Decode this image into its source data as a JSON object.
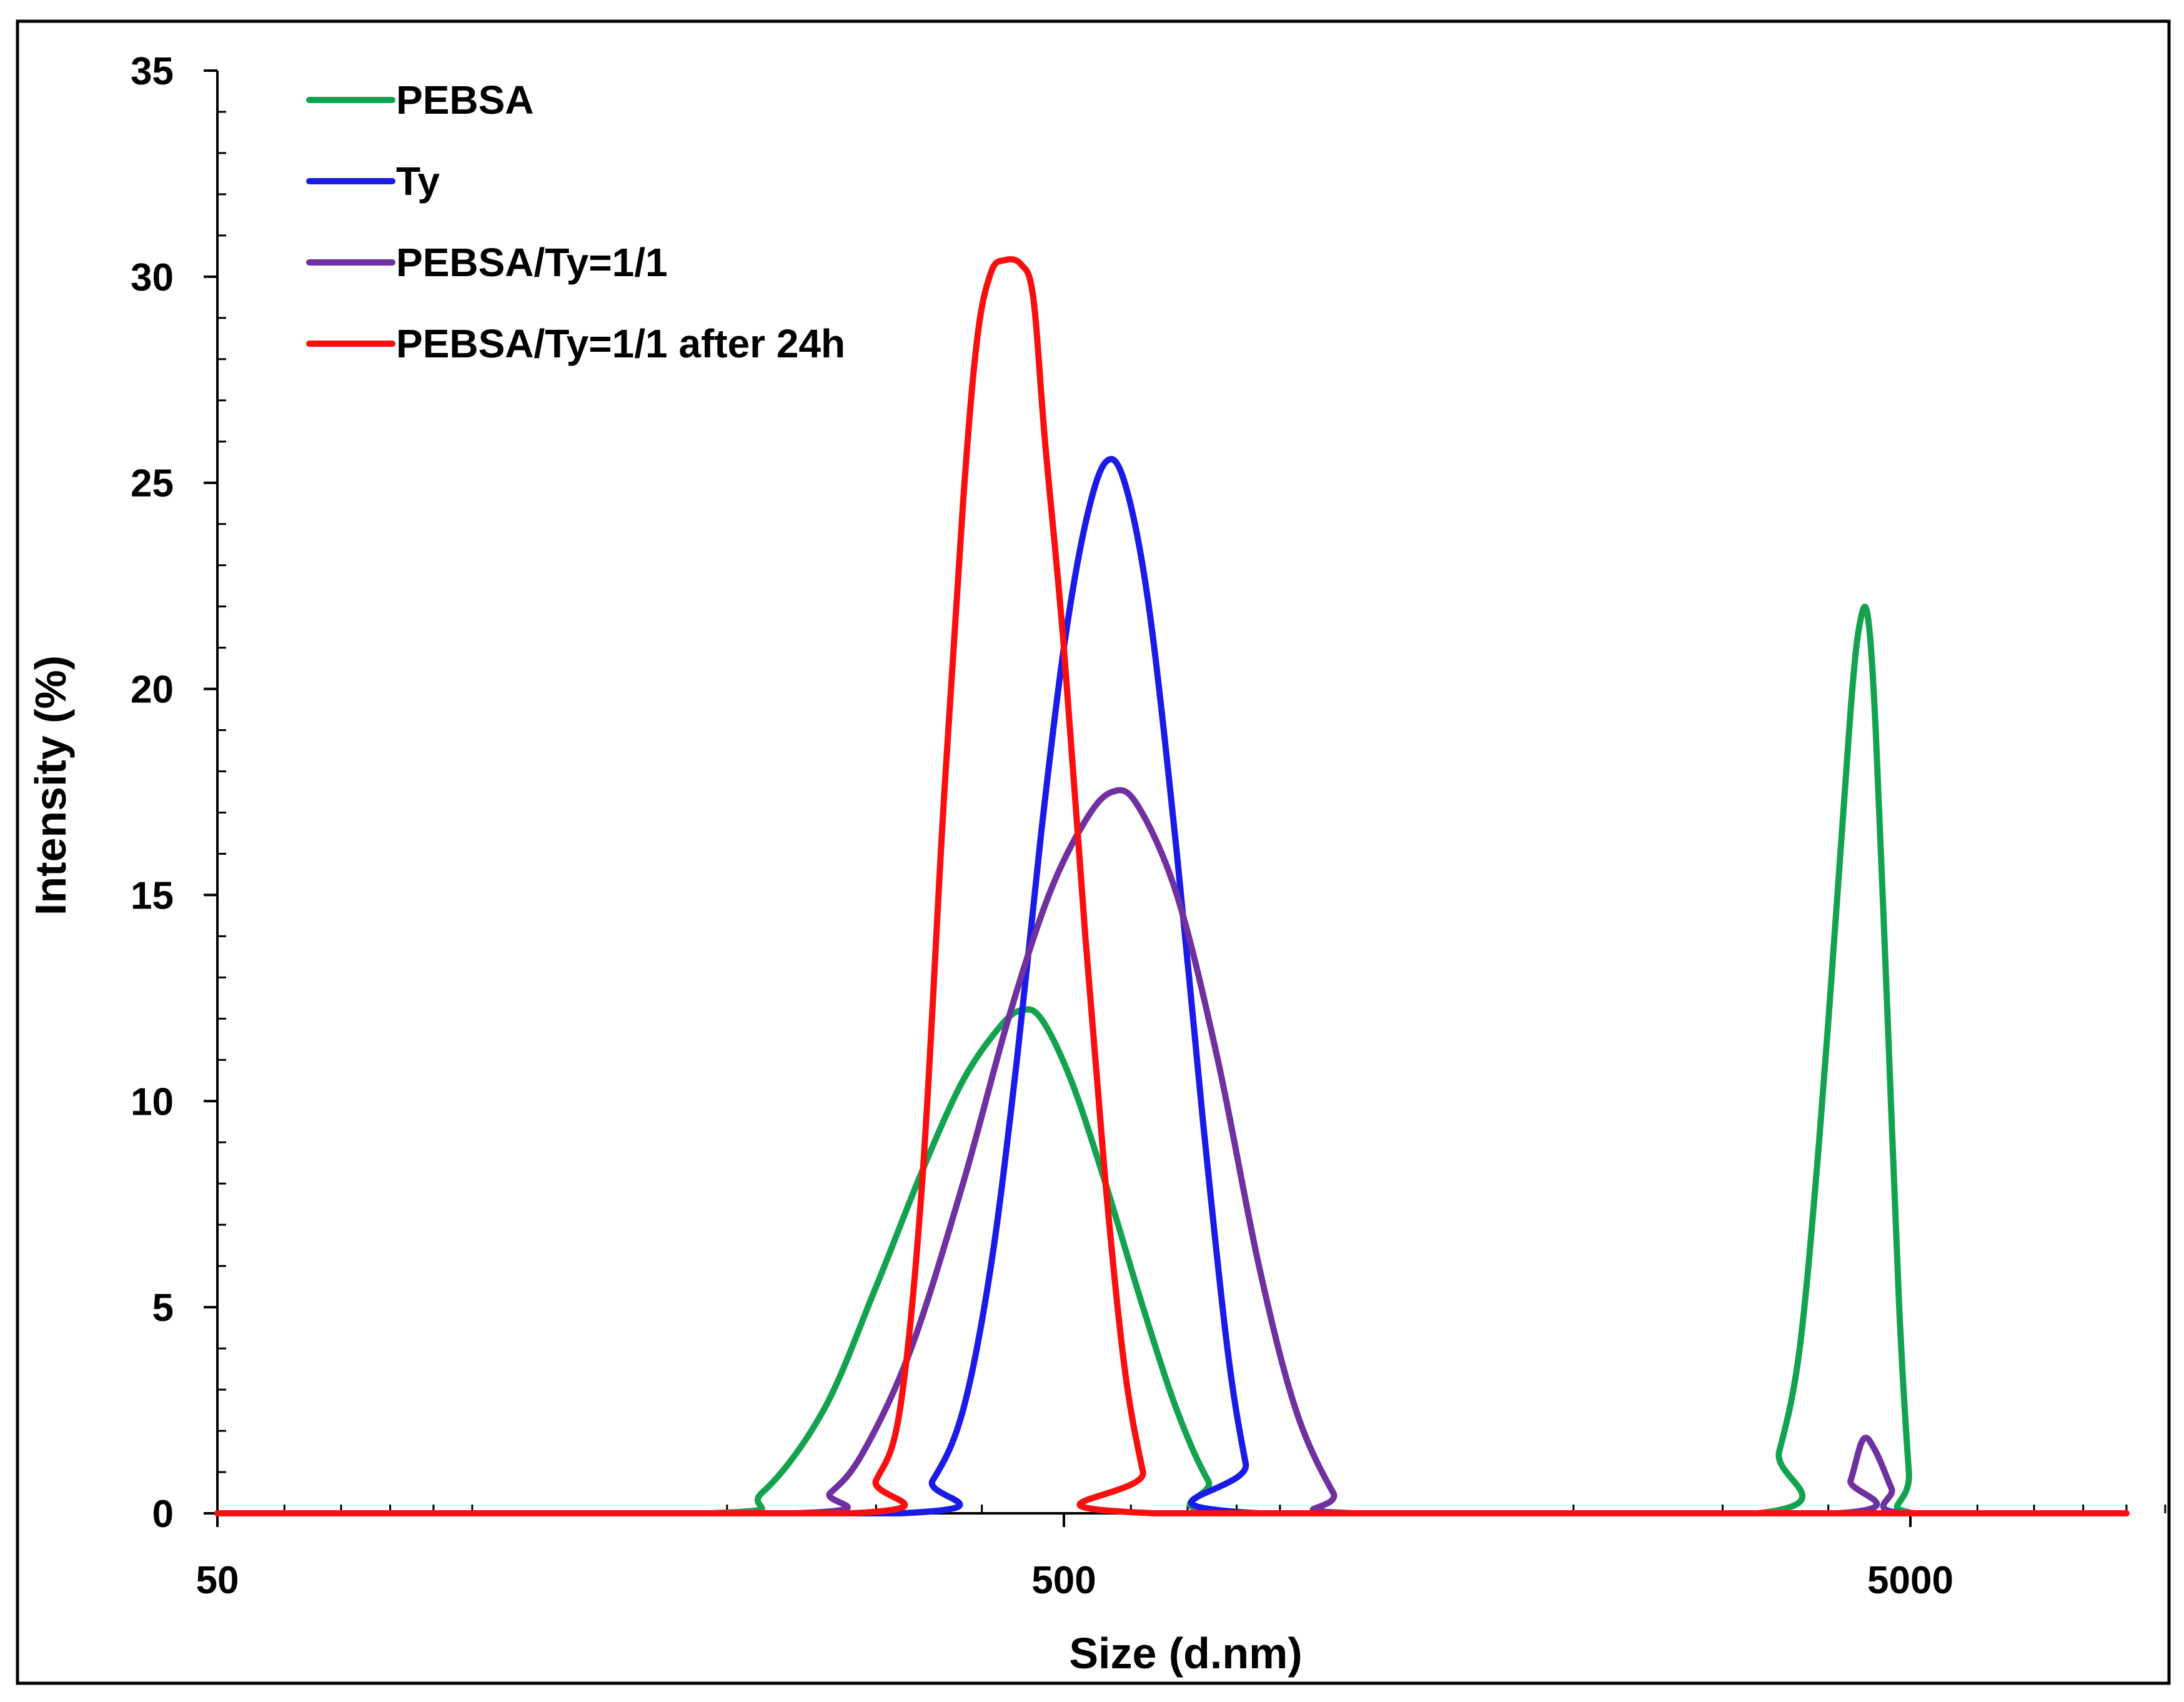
{
  "chart_data": {
    "type": "line",
    "title": "",
    "xlabel": "Size (d.nm)",
    "ylabel": "Intensity (%)",
    "xscale": "log",
    "xlim": [
      50,
      10000
    ],
    "ylim": [
      0,
      35
    ],
    "xticks": [
      50,
      500,
      5000
    ],
    "yticks": [
      0,
      5,
      10,
      15,
      20,
      25,
      30,
      35
    ],
    "xtick_labels": [
      "50",
      "500",
      "5000"
    ],
    "ytick_labels": [
      "0",
      "5",
      "10",
      "15",
      "20",
      "25",
      "30",
      "35"
    ],
    "grid": false,
    "legend_position": "top-left",
    "series": [
      {
        "name": "PEBSA",
        "color": "#13a34f",
        "points": [
          [
            50,
            0
          ],
          [
            190,
            0
          ],
          [
            220,
            0.5
          ],
          [
            260,
            2.5
          ],
          [
            300,
            5.5
          ],
          [
            340,
            8.3
          ],
          [
            380,
            10.5
          ],
          [
            420,
            11.8
          ],
          [
            445,
            12.2
          ],
          [
            470,
            12.0
          ],
          [
            510,
            10.5
          ],
          [
            560,
            8.0
          ],
          [
            620,
            5.0
          ],
          [
            680,
            2.5
          ],
          [
            740,
            0.8
          ],
          [
            800,
            0
          ],
          [
            3300,
            0
          ],
          [
            3500,
            1.5
          ],
          [
            3700,
            4.0
          ],
          [
            3900,
            9.0
          ],
          [
            4100,
            15.0
          ],
          [
            4250,
            19.5
          ],
          [
            4350,
            21.5
          ],
          [
            4450,
            21.8
          ],
          [
            4550,
            19.0
          ],
          [
            4700,
            12.0
          ],
          [
            4850,
            5.0
          ],
          [
            4980,
            1.0
          ],
          [
            5050,
            0
          ],
          [
            9000,
            0
          ]
        ]
      },
      {
        "name": "Ty",
        "color": "#1b1be8",
        "points": [
          [
            50,
            0
          ],
          [
            320,
            0
          ],
          [
            350,
            0.8
          ],
          [
            380,
            2.5
          ],
          [
            410,
            6.0
          ],
          [
            440,
            11.0
          ],
          [
            470,
            16.5
          ],
          [
            500,
            21.0
          ],
          [
            530,
            24.0
          ],
          [
            560,
            25.5
          ],
          [
            590,
            25.0
          ],
          [
            630,
            22.0
          ],
          [
            680,
            16.0
          ],
          [
            730,
            9.5
          ],
          [
            780,
            4.0
          ],
          [
            820,
            1.2
          ],
          [
            850,
            0
          ],
          [
            9000,
            0
          ]
        ]
      },
      {
        "name": "PEBSA/Ty=1/1",
        "color": "#7030a0",
        "points": [
          [
            50,
            0
          ],
          [
            240,
            0
          ],
          [
            265,
            0.5
          ],
          [
            290,
            1.5
          ],
          [
            330,
            4.0
          ],
          [
            380,
            8.0
          ],
          [
            430,
            12.0
          ],
          [
            480,
            15.0
          ],
          [
            530,
            16.8
          ],
          [
            570,
            17.5
          ],
          [
            610,
            17.2
          ],
          [
            680,
            15.0
          ],
          [
            760,
            11.0
          ],
          [
            850,
            6.0
          ],
          [
            940,
            2.5
          ],
          [
            1040,
            0.5
          ],
          [
            1100,
            0
          ],
          [
            4100,
            0
          ],
          [
            4250,
            0.8
          ],
          [
            4400,
            1.8
          ],
          [
            4550,
            1.5
          ],
          [
            4750,
            0.6
          ],
          [
            4900,
            0
          ],
          [
            9000,
            0
          ]
        ]
      },
      {
        "name": "PEBSA/Ty=1/1 after 24h",
        "color": "#fa0f0f",
        "points": [
          [
            50,
            0
          ],
          [
            280,
            0
          ],
          [
            300,
            0.8
          ],
          [
            320,
            2.5
          ],
          [
            340,
            8.0
          ],
          [
            360,
            17.0
          ],
          [
            380,
            24.5
          ],
          [
            395,
            28.5
          ],
          [
            410,
            30.1
          ],
          [
            425,
            30.4
          ],
          [
            445,
            30.3
          ],
          [
            460,
            29.5
          ],
          [
            475,
            26.0
          ],
          [
            500,
            21.0
          ],
          [
            530,
            14.0
          ],
          [
            560,
            8.0
          ],
          [
            590,
            3.5
          ],
          [
            620,
            1.0
          ],
          [
            640,
            0
          ],
          [
            9000,
            0
          ]
        ]
      }
    ]
  }
}
